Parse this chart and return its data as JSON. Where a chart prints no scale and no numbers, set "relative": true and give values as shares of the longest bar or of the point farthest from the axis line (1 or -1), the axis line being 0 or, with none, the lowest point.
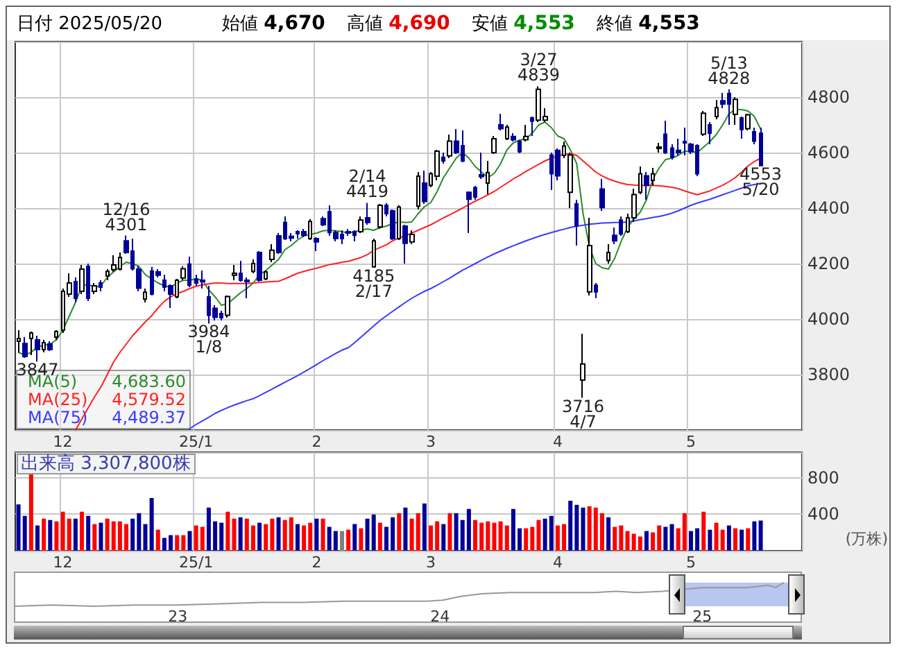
{
  "chart_data": [
    {
      "type": "candlestick",
      "title": "日付 2025/05/20",
      "annotations": [
        "始値 4,670",
        "高値 4,690",
        "安値 4,553",
        "終値 4,553",
        {
          "text": "3847",
          "y": 3847
        },
        {
          "text": "12/16\n4301",
          "y": 4301
        },
        {
          "text": "3984\n1/8",
          "y": 3984
        },
        {
          "text": "2/14\n4419",
          "y": 4419
        },
        {
          "text": "4185\n2/17",
          "y": 4185
        },
        {
          "text": "3/27\n4839",
          "y": 4839
        },
        {
          "text": "3716\n4/7",
          "y": 3716
        },
        {
          "text": "5/13\n4828",
          "y": 4828
        },
        {
          "text": "4553\n5/20",
          "y": 4553
        }
      ],
      "categories": [
        null,
        null,
        null,
        null,
        null,
        null,
        null,
        "12",
        null,
        null,
        null,
        null,
        null,
        null,
        null,
        null,
        null,
        null,
        null,
        null,
        null,
        null,
        null,
        null,
        null,
        null,
        null,
        null,
        "25/1",
        null,
        null,
        null,
        null,
        null,
        null,
        null,
        null,
        null,
        null,
        null,
        null,
        null,
        null,
        null,
        null,
        null,
        null,
        "2",
        null,
        null,
        null,
        null,
        null,
        null,
        null,
        null,
        null,
        null,
        null,
        null,
        null,
        null,
        null,
        null,
        null,
        "3",
        null,
        null,
        null,
        null,
        null,
        null,
        null,
        null,
        null,
        null,
        null,
        null,
        null,
        null,
        null,
        null,
        null,
        null,
        null,
        "4",
        null,
        null,
        null,
        null,
        null,
        null,
        null,
        null,
        null,
        null,
        null,
        null,
        null,
        null,
        null,
        null,
        null,
        null,
        null,
        null,
        "5",
        null,
        null,
        null,
        null,
        null,
        null,
        null,
        null,
        null,
        null,
        null
      ],
      "series": [
        {
          "type": "line",
          "name": "MA(5) 4,683.60",
          "color": "#2a8a2a",
          "values": [
            3880,
            3870,
            3880,
            3900,
            3905,
            3910,
            3925,
            3960,
            4010,
            4060,
            4120,
            4125,
            4115,
            4120,
            4150,
            4170,
            4190,
            4205,
            4200,
            4190,
            4160,
            4145,
            4130,
            4120,
            4115,
            4130,
            4140,
            4140,
            4145,
            4140,
            4105,
            4080,
            4050,
            4055,
            4075,
            4095,
            4110,
            4130,
            4160,
            4175,
            4195,
            4215,
            4250,
            4265,
            4285,
            4300,
            4305,
            4310,
            4318,
            4320,
            4318,
            4315,
            4310,
            4315,
            4320,
            4325,
            4320,
            4330,
            4335,
            4345,
            4350,
            4348,
            4350,
            4380,
            4405,
            4420,
            4460,
            4510,
            4545,
            4580,
            4600,
            4580,
            4550,
            4530,
            4510,
            4525,
            4560,
            4610,
            4635,
            4645,
            4650,
            4670,
            4700,
            4710,
            4690,
            4660,
            4650,
            4610,
            4560,
            4380,
            4260,
            4200,
            4185,
            4180,
            4220,
            4280,
            4330,
            4360,
            4385,
            4430,
            4505,
            4545,
            4575,
            4580,
            4590,
            4605,
            4605,
            4600,
            4620,
            4640,
            4665,
            4700,
            4740,
            4755,
            4755,
            4750,
            4730,
            4684
          ]
        },
        {
          "type": "line",
          "name": "MA(25) 4,579.52",
          "color": "#ff2020",
          "values": [
            null,
            null,
            null,
            null,
            null,
            null,
            null,
            null,
            null,
            3600,
            3640,
            3680,
            3720,
            3755,
            3800,
            3845,
            3880,
            3910,
            3940,
            3965,
            3990,
            4012,
            4040,
            4064,
            4080,
            4092,
            4100,
            4110,
            4118,
            4123,
            4127,
            4130,
            4130,
            4128,
            4128,
            4128,
            4128,
            4130,
            4132,
            4134,
            4135,
            4136,
            4145,
            4155,
            4165,
            4172,
            4178,
            4183,
            4190,
            4196,
            4200,
            4205,
            4208,
            4215,
            4222,
            4232,
            4248,
            4258,
            4268,
            4282,
            4292,
            4300,
            4310,
            4320,
            4330,
            4340,
            4352,
            4365,
            4376,
            4388,
            4400,
            4413,
            4425,
            4436,
            4448,
            4460,
            4475,
            4490,
            4505,
            4518,
            4532,
            4545,
            4558,
            4570,
            4580,
            4588,
            4593,
            4596,
            4590,
            4570,
            4550,
            4530,
            4516,
            4505,
            4497,
            4490,
            4485,
            4483,
            4482,
            4482,
            4482,
            4480,
            4478,
            4475,
            4470,
            4462,
            4455,
            4448,
            4455,
            4462,
            4472,
            4482,
            4495,
            4510,
            4530,
            4552,
            4568,
            4580
          ]
        },
        {
          "type": "line",
          "name": "MA(75) 4,489.37",
          "color": "#3a3aff",
          "values": [
            null,
            null,
            null,
            null,
            null,
            null,
            null,
            null,
            null,
            null,
            null,
            null,
            null,
            null,
            null,
            null,
            null,
            null,
            null,
            null,
            null,
            null,
            null,
            null,
            null,
            null,
            null,
            3605,
            3620,
            3633,
            3646,
            3660,
            3671,
            3681,
            3690,
            3698,
            3706,
            3713,
            3724,
            3736,
            3748,
            3760,
            3772,
            3784,
            3796,
            3809,
            3822,
            3836,
            3850,
            3863,
            3876,
            3888,
            3897,
            3915,
            3935,
            3955,
            3975,
            3995,
            4012,
            4028,
            4044,
            4060,
            4075,
            4088,
            4100,
            4110,
            4122,
            4135,
            4148,
            4162,
            4176,
            4188,
            4200,
            4212,
            4224,
            4235,
            4245,
            4255,
            4264,
            4273,
            4282,
            4290,
            4298,
            4305,
            4312,
            4318,
            4324,
            4330,
            4335,
            4338,
            4342,
            4344,
            4346,
            4347,
            4348,
            4348,
            4350,
            4354,
            4358,
            4362,
            4366,
            4370,
            4375,
            4382,
            4390,
            4400,
            4410,
            4418,
            4425,
            4432,
            4440,
            4448,
            4456,
            4464,
            4472,
            4480,
            4485,
            4489
          ]
        },
        {
          "type": "candlestick",
          "colors": [
            "#ffffff",
            "#000099",
            "#ffffff",
            "#000099",
            "#ffffff",
            "#000099",
            "#ffffff",
            "#ffffff",
            "#ffffff",
            "#000099",
            "#ffffff",
            "#000099",
            "#ffffff",
            "#000099",
            "#ffffff",
            "#ffffff",
            "#ffffff",
            "#000099",
            "#000099",
            "#000099",
            "#ffffff",
            "#000099",
            "#000099",
            "#000099",
            "#000099",
            "#ffffff",
            "#ffffff",
            "#000099",
            "#000099",
            "#000099",
            "#000099",
            "#000099",
            "#000099",
            "#ffffff",
            "#ffffff",
            "#000099",
            "#000099",
            "#ffffff",
            "#000099",
            "#ffffff",
            "#ffffff",
            "#000099",
            "#000099",
            "#000099",
            "#000099",
            "#000099",
            "#ffffff",
            "#000099",
            "#000099",
            "#000099",
            "#000099",
            "#000099",
            "#000099",
            "#000099",
            "#ffffff",
            "#000099",
            "#ffffff",
            "#ffffff",
            "#000099",
            "#000099",
            "#ffffff",
            "#000099",
            "#ffffff",
            "#ffffff",
            "#000099",
            "#ffffff",
            "#ffffff",
            "#000099",
            "#ffffff",
            "#000099",
            "#000099",
            "#000099",
            "#000099",
            "#000099",
            "#ffffff",
            "#ffffff",
            "#000099",
            "#ffffff",
            "#000099",
            "#000099",
            "#ffffff",
            "#000099",
            "#ffffff",
            "#ffffff",
            "#000099",
            "#000099",
            "#ffffff",
            "#ffffff",
            "#000099",
            "#ffffff",
            "#ffffff",
            "#000099",
            "#000099",
            "#ffffff",
            "#000099",
            "#000099",
            "#ffffff",
            "#ffffff",
            "#ffffff",
            "#000099",
            "#ffffff",
            "#ffffff",
            "#000099",
            "#000099",
            "#000099",
            "#000099",
            "#000099",
            "#000099",
            "#ffffff",
            "#000099",
            "#ffffff",
            "#000099",
            "#000099",
            "#ffffff",
            "#000099",
            "#ffffff",
            "#000099",
            "#000099"
          ],
          "ohlc": [
            [
              3920,
              3960,
              3880,
              3930
            ],
            [
              3912,
              3935,
              3860,
              3865
            ],
            [
              3930,
              3955,
              3870,
              3950
            ],
            [
              3925,
              3940,
              3847,
              3890
            ],
            [
              3890,
              3925,
              3880,
              3915
            ],
            [
              3910,
              3920,
              3885,
              3890
            ],
            [
              3935,
              3960,
              3925,
              3955
            ],
            [
              3960,
              4110,
              3950,
              4100
            ],
            [
              4090,
              4165,
              4080,
              4130
            ],
            [
              4135,
              4150,
              4060,
              4075
            ],
            [
              4100,
              4195,
              4090,
              4180
            ],
            [
              4190,
              4200,
              4065,
              4075
            ],
            [
              4100,
              4130,
              4090,
              4120
            ],
            [
              4130,
              4140,
              4100,
              4115
            ],
            [
              4155,
              4180,
              4140,
              4172
            ],
            [
              4178,
              4230,
              4170,
              4195
            ],
            [
              4180,
              4240,
              4175,
              4222
            ],
            [
              4282,
              4301,
              4235,
              4240
            ],
            [
              4245,
              4290,
              4175,
              4181
            ],
            [
              4180,
              4190,
              4100,
              4111
            ],
            [
              4072,
              4110,
              4060,
              4097
            ],
            [
              4173,
              4188,
              4085,
              4090
            ],
            [
              4170,
              4180,
              4150,
              4158
            ],
            [
              4140,
              4160,
              4100,
              4115
            ],
            [
              4120,
              4125,
              4040,
              4090
            ],
            [
              4080,
              4145,
              4075,
              4140
            ],
            [
              4148,
              4190,
              4140,
              4181
            ],
            [
              4198,
              4225,
              4115,
              4122
            ],
            [
              4145,
              4160,
              4120,
              4130
            ],
            [
              4140,
              4175,
              4110,
              4135
            ],
            [
              4080,
              4120,
              3984,
              4014
            ],
            [
              4039,
              4050,
              3995,
              4006
            ],
            [
              4020,
              4030,
              3995,
              4005
            ],
            [
              4014,
              4085,
              4005,
              4081
            ],
            [
              4158,
              4195,
              4140,
              4165
            ],
            [
              4165,
              4210,
              4135,
              4140
            ],
            [
              4140,
              4150,
              4075,
              4135
            ],
            [
              4172,
              4215,
              4165,
              4200
            ],
            [
              4240,
              4245,
              4135,
              4140
            ],
            [
              4145,
              4175,
              4140,
              4170
            ],
            [
              4215,
              4270,
              4205,
              4248
            ],
            [
              4300,
              4310,
              4235,
              4240
            ],
            [
              4348,
              4370,
              4285,
              4290
            ],
            [
              4298,
              4310,
              4280,
              4292
            ],
            [
              4315,
              4320,
              4290,
              4308
            ],
            [
              4315,
              4325,
              4295,
              4302
            ],
            [
              4290,
              4360,
              4285,
              4352
            ],
            [
              4290,
              4295,
              4245,
              4278
            ],
            [
              4362,
              4370,
              4335,
              4340
            ],
            [
              4387,
              4410,
              4300,
              4312
            ],
            [
              4312,
              4320,
              4280,
              4290
            ],
            [
              4305,
              4320,
              4270,
              4290
            ],
            [
              4315,
              4325,
              4300,
              4310
            ],
            [
              4315,
              4320,
              4280,
              4302
            ],
            [
              4315,
              4370,
              4310,
              4357
            ],
            [
              4365,
              4419,
              4340,
              4348
            ],
            [
              4188,
              4290,
              4185,
              4282
            ],
            [
              4332,
              4415,
              4325,
              4410
            ],
            [
              4410,
              4418,
              4370,
              4380
            ],
            [
              4390,
              4395,
              4285,
              4290
            ],
            [
              4290,
              4410,
              4285,
              4404
            ],
            [
              4335,
              4340,
              4200,
              4273
            ],
            [
              4278,
              4320,
              4270,
              4305
            ],
            [
              4407,
              4530,
              4395,
              4515
            ],
            [
              4490,
              4535,
              4415,
              4424
            ],
            [
              4482,
              4530,
              4475,
              4524
            ],
            [
              4515,
              4610,
              4500,
              4605
            ],
            [
              4583,
              4600,
              4560,
              4570
            ],
            [
              4588,
              4665,
              4580,
              4641
            ],
            [
              4641,
              4685,
              4595,
              4600
            ],
            [
              4625,
              4680,
              4565,
              4570
            ],
            [
              4457,
              4460,
              4310,
              4432
            ],
            [
              4474,
              4480,
              4430,
              4440
            ],
            [
              4520,
              4600,
              4505,
              4513
            ],
            [
              4490,
              4570,
              4450,
              4528
            ],
            [
              4600,
              4660,
              4595,
              4650
            ],
            [
              4700,
              4740,
              4680,
              4686
            ],
            [
              4650,
              4700,
              4645,
              4692
            ],
            [
              4658,
              4670,
              4640,
              4646
            ],
            [
              4641,
              4645,
              4598,
              4603
            ],
            [
              4646,
              4700,
              4640,
              4658
            ],
            [
              4725,
              4730,
              4660,
              4713
            ],
            [
              4717,
              4839,
              4710,
              4828
            ],
            [
              4717,
              4760,
              4710,
              4730
            ],
            [
              4591,
              4600,
              4465,
              4524
            ],
            [
              4608,
              4615,
              4500,
              4516
            ],
            [
              4590,
              4640,
              4580,
              4624
            ],
            [
              4457,
              4600,
              4400,
              4591
            ],
            [
              4415,
              4430,
              4265,
              4335
            ],
            [
              3780,
              3947,
              3716,
              3838
            ],
            [
              4098,
              4365,
              4085,
              4265
            ],
            [
              4122,
              4130,
              4075,
              4098
            ],
            [
              4469,
              4505,
              4390,
              4402
            ],
            [
              4211,
              4270,
              4200,
              4240
            ],
            [
              4302,
              4330,
              4270,
              4282
            ],
            [
              4357,
              4370,
              4300,
              4307
            ],
            [
              4315,
              4380,
              4310,
              4365
            ],
            [
              4365,
              4470,
              4350,
              4449
            ],
            [
              4457,
              4550,
              4450,
              4524
            ],
            [
              4516,
              4530,
              4430,
              4482
            ],
            [
              4500,
              4545,
              4480,
              4524
            ],
            [
              4615,
              4635,
              4600,
              4620
            ],
            [
              4666,
              4715,
              4595,
              4600
            ],
            [
              4616,
              4630,
              4575,
              4583
            ],
            [
              4608,
              4650,
              4590,
              4600
            ],
            [
              4640,
              4690,
              4590,
              4635
            ],
            [
              4630,
              4635,
              4595,
              4603
            ],
            [
              4625,
              4630,
              4515,
              4524
            ],
            [
              4666,
              4750,
              4660,
              4742
            ],
            [
              4700,
              4710,
              4630,
              4670
            ],
            [
              4730,
              4790,
              4720,
              4762
            ],
            [
              4787,
              4815,
              4760,
              4775
            ],
            [
              4813,
              4828,
              4700,
              4775
            ],
            [
              4738,
              4800,
              4700,
              4792
            ],
            [
              4725,
              4730,
              4650,
              4683
            ],
            [
              4686,
              4740,
              4680,
              4736
            ],
            [
              4675,
              4690,
              4630,
              4641
            ],
            [
              4670,
              4690,
              4553,
              4553
            ]
          ]
        }
      ],
      "ylim": [
        3600,
        5000
      ],
      "yticks": [
        3800,
        4000,
        4200,
        4400,
        4600,
        4800
      ],
      "grid": true,
      "marker": "none"
    },
    {
      "type": "bar",
      "title": "出来高 3,307,800株",
      "ylabel": "(万株)",
      "categories": [
        null,
        null,
        null,
        null,
        null,
        null,
        null,
        "12",
        null,
        null,
        null,
        null,
        null,
        null,
        null,
        null,
        null,
        null,
        null,
        null,
        null,
        null,
        null,
        null,
        null,
        null,
        null,
        null,
        "25/1",
        null,
        null,
        null,
        null,
        null,
        null,
        null,
        null,
        null,
        null,
        null,
        null,
        null,
        null,
        null,
        null,
        null,
        null,
        "2",
        null,
        null,
        null,
        null,
        null,
        null,
        null,
        null,
        null,
        null,
        null,
        null,
        null,
        null,
        null,
        null,
        null,
        "3",
        null,
        null,
        null,
        null,
        null,
        null,
        null,
        null,
        null,
        null,
        null,
        null,
        null,
        null,
        null,
        null,
        null,
        null,
        null,
        "4",
        null,
        null,
        null,
        null,
        null,
        null,
        null,
        null,
        null,
        null,
        null,
        null,
        null,
        null,
        null,
        null,
        null,
        null,
        null,
        null,
        "5",
        null,
        null,
        null,
        null,
        null,
        null,
        null,
        null,
        null,
        null,
        null
      ],
      "values": [
        508,
        382,
        860,
        277,
        352,
        337,
        322,
        428,
        352,
        352,
        428,
        382,
        292,
        307,
        352,
        322,
        322,
        292,
        352,
        412,
        292,
        578,
        231,
        141,
        171,
        171,
        171,
        216,
        277,
        262,
        473,
        322,
        307,
        428,
        352,
        367,
        352,
        277,
        307,
        292,
        352,
        367,
        337,
        367,
        292,
        277,
        307,
        352,
        352,
        262,
        216,
        216,
        231,
        292,
        246,
        352,
        397,
        307,
        262,
        367,
        412,
        473,
        352,
        412,
        518,
        277,
        322,
        292,
        412,
        412,
        337,
        458,
        337,
        307,
        322,
        307,
        322,
        277,
        458,
        246,
        246,
        262,
        337,
        352,
        382,
        277,
        292,
        548,
        503,
        473,
        488,
        473,
        412,
        367,
        262,
        277,
        216,
        186,
        156,
        216,
        201,
        277,
        262,
        292,
        246,
        412,
        216,
        246,
        428,
        231,
        307,
        231,
        277,
        246,
        231,
        246,
        322,
        331
      ],
      "colors": [
        "#000099",
        "#000099",
        "#ff0000",
        "#000099",
        "#ff0000",
        "#000099",
        "#ff0000",
        "#ff0000",
        "#ff0000",
        "#000099",
        "#ff0000",
        "#000099",
        "#ff0000",
        "#000099",
        "#ff0000",
        "#ff0000",
        "#ff0000",
        "#ff0000",
        "#000099",
        "#000099",
        "#000099",
        "#000099",
        "#ff0000",
        "#000099",
        "#000099",
        "#ff0000",
        "#ff0000",
        "#000099",
        "#ff0000",
        "#ff0000",
        "#000099",
        "#000099",
        "#000099",
        "#ff0000",
        "#ff0000",
        "#000099",
        "#ff0000",
        "#ff0000",
        "#000099",
        "#ff0000",
        "#ff0000",
        "#000099",
        "#ff0000",
        "#ff0000",
        "#000099",
        "#ff0000",
        "#ff0000",
        "#000099",
        "#ff0000",
        "#000099",
        "#000099",
        "#808080",
        "#ff0000",
        "#000099",
        "#ff0000",
        "#000099",
        "#000099",
        "#ff0000",
        "#000099",
        "#000099",
        "#ff0000",
        "#000099",
        "#ff0000",
        "#ff0000",
        "#000099",
        "#ff0000",
        "#ff0000",
        "#000099",
        "#ff0000",
        "#000099",
        "#000099",
        "#000099",
        "#ff0000",
        "#ff0000",
        "#ff0000",
        "#ff0000",
        "#ff0000",
        "#ff0000",
        "#000099",
        "#000099",
        "#ff0000",
        "#ff0000",
        "#ff0000",
        "#000099",
        "#000099",
        "#ff0000",
        "#ff0000",
        "#000099",
        "#000099",
        "#000099",
        "#ff0000",
        "#ff0000",
        "#ff0000",
        "#000099",
        "#ff0000",
        "#ff0000",
        "#ff0000",
        "#ff0000",
        "#ff0000",
        "#000099",
        "#ff0000",
        "#ff0000",
        "#000099",
        "#000099",
        "#ff0000",
        "#ff0000",
        "#000099",
        "#000099",
        "#ff0000",
        "#000099",
        "#ff0000",
        "#ff0000",
        "#000099",
        "#ff0000",
        "#000099",
        "#ff0000",
        "#000099",
        "#000099"
      ],
      "ylim": [
        0,
        1080
      ],
      "yticks": [
        400,
        800
      ],
      "grid": true
    },
    {
      "type": "line",
      "relative": true,
      "color": "#999999",
      "marker": "none",
      "x": [
        2022.38,
        2022.52,
        2022.68,
        2022.84,
        2023.0,
        2023.16,
        2023.32,
        2023.48,
        2023.63,
        2023.79,
        2023.95,
        2024.01,
        2024.08,
        2024.16,
        2024.27,
        2024.43,
        2024.59,
        2024.67,
        2024.75,
        2024.85,
        2024.95,
        2025.0,
        2025.06,
        2025.17,
        2025.25,
        2025.28,
        2025.31
      ],
      "values": [
        0,
        0.05,
        0,
        0.05,
        0.05,
        0.1,
        0.16,
        0.16,
        0.21,
        0.21,
        0.21,
        0.26,
        0.42,
        0.53,
        0.58,
        0.58,
        0.58,
        0.63,
        0.58,
        0.63,
        0.74,
        0.79,
        0.79,
        0.79,
        0.89,
        0.79,
        1
      ],
      "xlim": [
        2022.38,
        2025.38
      ],
      "xticks": [
        {
          "value": 2023,
          "label": "23"
        },
        {
          "value": 2024,
          "label": "24"
        },
        {
          "value": 2025,
          "label": "25"
        }
      ],
      "bands": [
        {
          "axis": "x",
          "from": 2024.89,
          "to": 2025.38,
          "color": "#b8c6f0"
        }
      ]
    }
  ]
}
